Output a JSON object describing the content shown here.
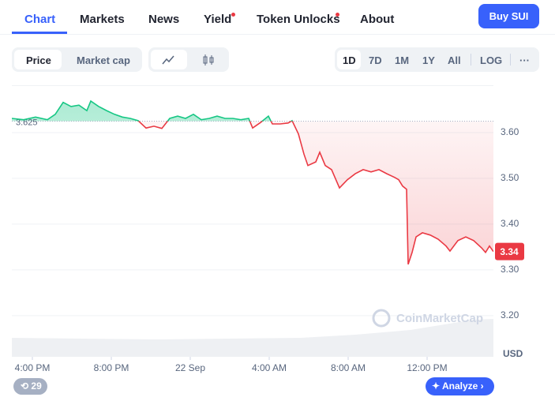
{
  "tabs": [
    "Chart",
    "Markets",
    "News",
    "Yield",
    "Token Unlocks",
    "About"
  ],
  "buy_button": "Buy SUI",
  "chart_toggles": [
    "Price",
    "Market cap"
  ],
  "ranges": [
    "1D",
    "7D",
    "1M",
    "1Y",
    "All",
    "LOG",
    "···"
  ],
  "watermark": "CoinMarketCap",
  "history_count": "29",
  "analyze_button": "Analyze",
  "chart_data": {
    "type": "line",
    "x": [
      -1.04,
      -0.44,
      0.16,
      0.76,
      1.16,
      1.56,
      1.96,
      2.36,
      2.76,
      2.96,
      3.36,
      3.76,
      4.16,
      4.56,
      4.96,
      5.36,
      5.76,
      6.16,
      6.56,
      6.96,
      7.36,
      7.76,
      8.16,
      8.56,
      8.96,
      9.36,
      9.76,
      10.16,
      10.56,
      10.96,
      11.16,
      11.56,
      11.96,
      12.16,
      12.56,
      12.96,
      13.16,
      13.48,
      13.76,
      13.96,
      14.36,
      14.56,
      14.84,
      15.16,
      15.56,
      15.96,
      16.36,
      16.76,
      17.16,
      17.56,
      17.96,
      18.36,
      18.56,
      18.76,
      18.96,
      19.04,
      19.24,
      19.44,
      19.76,
      20.16,
      20.56,
      20.96,
      21.16,
      21.56,
      21.96,
      22.36,
      22.76,
      22.96,
      23.16,
      23.36
    ],
    "values": [
      3.631,
      3.628,
      3.634,
      3.628,
      3.64,
      3.666,
      3.657,
      3.66,
      3.648,
      3.669,
      3.657,
      3.648,
      3.64,
      3.634,
      3.631,
      3.626,
      3.61,
      3.614,
      3.609,
      3.631,
      3.636,
      3.631,
      3.64,
      3.628,
      3.631,
      3.636,
      3.631,
      3.631,
      3.628,
      3.631,
      3.61,
      3.622,
      3.636,
      3.619,
      3.619,
      3.621,
      3.626,
      3.597,
      3.553,
      3.528,
      3.536,
      3.557,
      3.528,
      3.519,
      3.479,
      3.497,
      3.51,
      3.519,
      3.514,
      3.519,
      3.51,
      3.502,
      3.497,
      3.483,
      3.476,
      3.312,
      3.338,
      3.372,
      3.381,
      3.376,
      3.367,
      3.352,
      3.341,
      3.364,
      3.372,
      3.364,
      3.348,
      3.338,
      3.352,
      3.34
    ],
    "baseline": 3.625,
    "current_price": 3.34,
    "up_color": "#16c784",
    "down_color": "#ea3943",
    "xlim": [
      -1.04,
      23.36
    ],
    "xticks": [
      {
        "value": 0,
        "label": "4:00 PM"
      },
      {
        "value": 4,
        "label": "8:00 PM"
      },
      {
        "value": 8,
        "label": "22 Sep"
      },
      {
        "value": 12,
        "label": "4:00 AM"
      },
      {
        "value": 16,
        "label": "8:00 AM"
      },
      {
        "value": 20,
        "label": "12:00 PM"
      }
    ],
    "ylim": [
      3.11,
      3.7
    ],
    "yticks": [
      {
        "value": 3.6,
        "label": "3.60"
      },
      {
        "value": 3.5,
        "label": "3.50"
      },
      {
        "value": 3.4,
        "label": "3.40"
      },
      {
        "value": 3.3,
        "label": "3.30"
      },
      {
        "value": 3.2,
        "label": "3.20"
      }
    ],
    "y_unit": "USD",
    "grid": true
  }
}
